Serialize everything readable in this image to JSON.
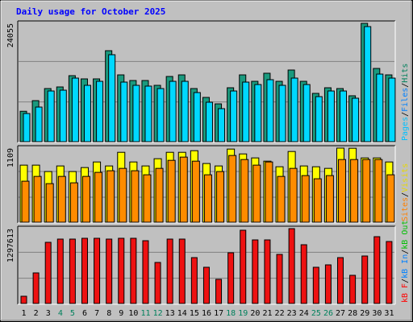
{
  "title": "Daily usage for October 2025",
  "chart_data": [
    {
      "type": "bar",
      "ylim": [
        0,
        24055
      ],
      "yticks": [
        24055
      ],
      "grid_divisions": 3,
      "legend": [
        {
          "text": "Pages",
          "color": "#00c0ff"
        },
        {
          "text": "Files",
          "color": "#0080ff"
        },
        {
          "text": "Hits",
          "color": "#00805c"
        }
      ],
      "legend_separator": "/",
      "series": [
        {
          "name": "Hits",
          "color": "#1a9a7e",
          "values": [
            6300,
            8450,
            10890,
            11215,
            13490,
            12840,
            12840,
            18530,
            13650,
            12515,
            12515,
            11540,
            13330,
            13650,
            10890,
            9100,
            7800,
            11050,
            13650,
            12350,
            13980,
            12350,
            14630,
            12350,
            9915,
            11050,
            10890,
            9430,
            24055,
            14950,
            13650
          ]
        },
        {
          "name": "Files",
          "color": "#00d8ff",
          "values": [
            5850,
            7150,
            10400,
            10560,
            13000,
            11540,
            12350,
            17720,
            12190,
            11540,
            11380,
            10890,
            12350,
            12350,
            10080,
            8130,
            6830,
            10400,
            12190,
            11700,
            12680,
            11540,
            13000,
            11700,
            9260,
            10400,
            10400,
            8940,
            23400,
            13810,
            13000
          ]
        }
      ]
    },
    {
      "type": "bar",
      "ylim": [
        0,
        1109
      ],
      "yticks": [
        1109
      ],
      "grid_divisions": 3,
      "legend": [
        {
          "text": "Sites",
          "color": "#ff8000"
        },
        {
          "text": "Visits",
          "color": "#e8d800"
        }
      ],
      "legend_separator": "/",
      "series": [
        {
          "name": "Visits",
          "color": "#ffff00",
          "values": [
            857,
            857,
            762,
            845,
            762,
            821,
            904,
            845,
            1047,
            904,
            845,
            952,
            1047,
            1047,
            1071,
            881,
            845,
            1095,
            1023,
            964,
            916,
            833,
            1059,
            845,
            833,
            809,
            1109,
            1107,
            964,
            964,
            904
          ]
        },
        {
          "name": "Sites",
          "color": "#ff8c00",
          "values": [
            619,
            690,
            583,
            690,
            595,
            690,
            750,
            774,
            809,
            774,
            714,
            809,
            928,
            976,
            916,
            714,
            762,
            1000,
            940,
            857,
            904,
            690,
            809,
            702,
            655,
            702,
            940,
            940,
            940,
            940,
            714
          ]
        }
      ]
    },
    {
      "type": "bar",
      "ylim": [
        0,
        1297613
      ],
      "yticks": [
        1297613
      ],
      "grid_divisions": 3,
      "legend": [
        {
          "text": "kB F",
          "color": "#ff0000"
        },
        {
          "text": "kB In",
          "color": "#0080ff"
        },
        {
          "text": "kB Out",
          "color": "#00c000"
        }
      ],
      "legend_separator": "/",
      "categories": [
        "1",
        "2",
        "3",
        "4",
        "5",
        "6",
        "7",
        "8",
        "9",
        "10",
        "11",
        "12",
        "13",
        "14",
        "15",
        "16",
        "17",
        "18",
        "19",
        "20",
        "21",
        "22",
        "23",
        "24",
        "25",
        "26",
        "27",
        "28",
        "29",
        "30",
        "31"
      ],
      "category_colors": [
        "#000000",
        "#000000",
        "#000000",
        "#00805c",
        "#00805c",
        "#000000",
        "#000000",
        "#000000",
        "#000000",
        "#000000",
        "#00805c",
        "#00805c",
        "#000000",
        "#000000",
        "#000000",
        "#000000",
        "#000000",
        "#00805c",
        "#00805c",
        "#000000",
        "#000000",
        "#000000",
        "#000000",
        "#000000",
        "#00805c",
        "#00805c",
        "#000000",
        "#000000",
        "#000000",
        "#000000",
        "#000000"
      ],
      "series": [
        {
          "name": "kB F",
          "color": "#ee1111",
          "values": [
            138040,
            538356,
            1062908,
            1118124,
            1118124,
            1131928,
            1131928,
            1118124,
            1131928,
            1131928,
            1090516,
            717808,
            1118124,
            1118124,
            800632,
            634984,
            427924,
            883456,
            1269968,
            1104320,
            1104320,
            855848,
            1297613,
            1021496,
            634984,
            676396,
            800632,
            496944,
            828240,
            1159536,
            1076712
          ]
        }
      ]
    }
  ]
}
